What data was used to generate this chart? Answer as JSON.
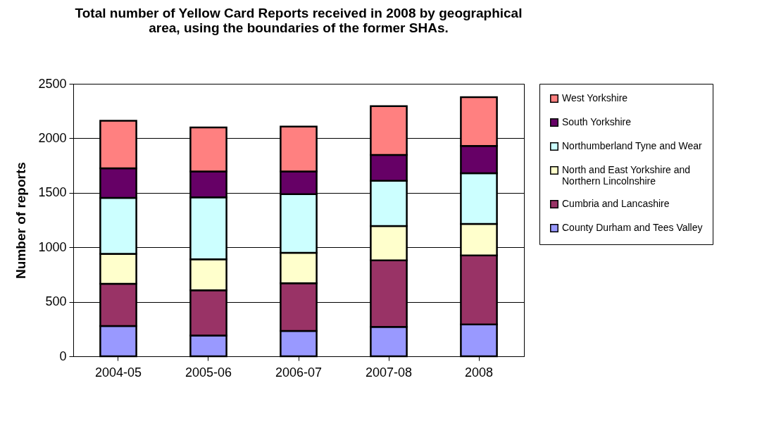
{
  "chart_data": {
    "type": "bar",
    "stacked": true,
    "title": "Total number of Yellow Card Reports received in 2008 by geographical area, using the boundaries of the former SHAs.",
    "ylabel": "Number of reports",
    "categories": [
      "2004-05",
      "2005-06",
      "2006-07",
      "2007-08",
      "2008"
    ],
    "series": [
      {
        "name": "County Durham and Tees Valley",
        "color": "#9999ff",
        "values": [
          277,
          190,
          233,
          270,
          292
        ]
      },
      {
        "name": "Cumbria and Lancashire",
        "color": "#993366",
        "values": [
          389,
          415,
          437,
          610,
          633
        ]
      },
      {
        "name": "North and East Yorkshire and Northern Lincolnshire",
        "color": "#ffffcc",
        "values": [
          274,
          285,
          279,
          315,
          289
        ]
      },
      {
        "name": "Northumberland Tyne and Wear",
        "color": "#ccffff",
        "values": [
          514,
          569,
          538,
          415,
          465
        ]
      },
      {
        "name": "South Yorkshire",
        "color": "#660066",
        "values": [
          270,
          237,
          209,
          238,
          251
        ]
      },
      {
        "name": "West Yorkshire",
        "color": "#ff8080",
        "values": [
          437,
          404,
          411,
          447,
          447
        ]
      }
    ],
    "ylim": [
      0,
      2500
    ],
    "yticks": [
      0,
      500,
      1000,
      1500,
      2000,
      2500
    ],
    "grid": "y",
    "legend": "right"
  }
}
